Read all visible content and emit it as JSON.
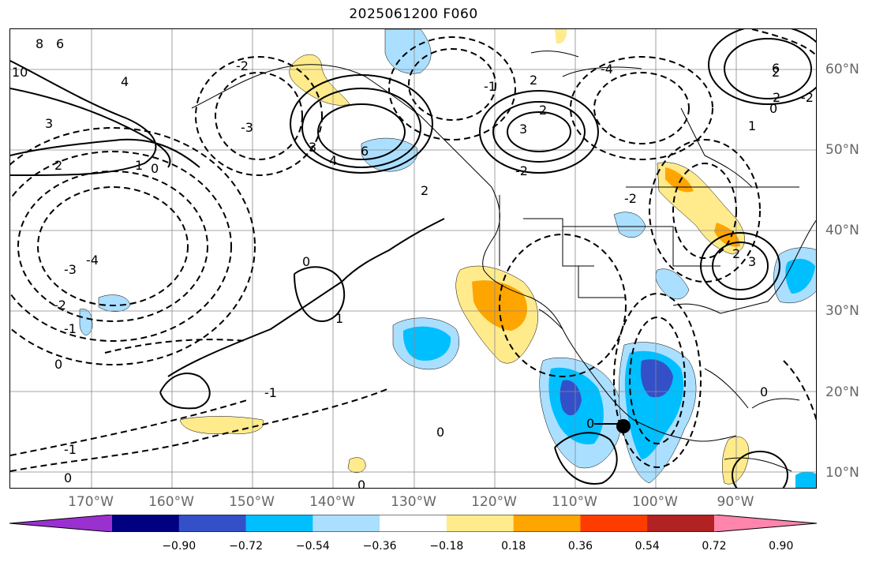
{
  "title": "2025061200 F060",
  "lat_labels": [
    "60°N",
    "50°N",
    "40°N",
    "30°N",
    "20°N",
    "10°N"
  ],
  "lon_labels": [
    "170°W",
    "160°W",
    "150°W",
    "140°W",
    "130°W",
    "120°W",
    "110°W",
    "100°W",
    "90°W"
  ],
  "colorbar": {
    "ticks": [
      "−0.90",
      "−0.72",
      "−0.54",
      "−0.36",
      "−0.18",
      "0.18",
      "0.36",
      "0.54",
      "0.72",
      "0.90"
    ],
    "colors": [
      "#9b30d0",
      "#000080",
      "#3350c8",
      "#00bfff",
      "#abdfff",
      "#ffffff",
      "#ffeb8c",
      "#ffa500",
      "#ff3c00",
      "#b22222",
      "#ff85ad"
    ]
  },
  "contour_labels": [
    "6",
    "8",
    "10",
    "4",
    "3",
    "2",
    "1",
    "0",
    "-3",
    "-4",
    "-2",
    "-1",
    "6",
    "4",
    "3",
    "2",
    "2",
    "3",
    "2",
    "-1",
    "-2",
    "-3",
    "-4",
    "0",
    "1",
    "-1",
    "0",
    "-1",
    "0",
    "0",
    "0",
    "0",
    "-2",
    "-2",
    "2",
    "2",
    "0",
    "-2",
    "1",
    "2",
    "3",
    "6",
    "0"
  ]
}
